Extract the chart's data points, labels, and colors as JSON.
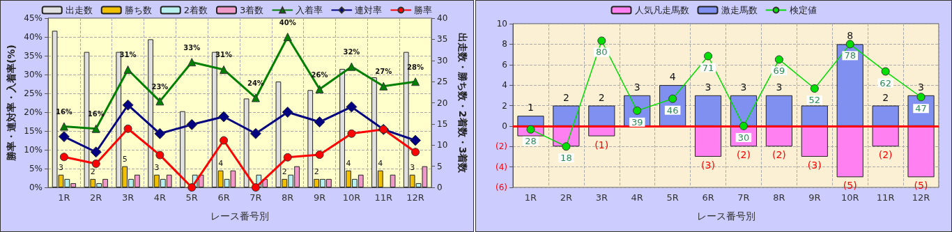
{
  "chart_data": [
    {
      "type": "bar",
      "xlabel": "レース番号別",
      "ylabel": "勝率・連対率・入着率(%)",
      "y2label": "出走数・勝ち数・2着数・3着数",
      "categories": [
        "1R",
        "2R",
        "3R",
        "4R",
        "5R",
        "6R",
        "7R",
        "8R",
        "9R",
        "10R",
        "11R",
        "12R"
      ],
      "series": [
        {
          "name": "出走数",
          "axis": "y2",
          "color": "#e0e0e0",
          "values": [
            37,
            32,
            32,
            35,
            18,
            32,
            21,
            25,
            23,
            28,
            26,
            32
          ]
        },
        {
          "name": "勝ち数",
          "axis": "y2",
          "color": "#f0c000",
          "values": [
            3,
            2,
            5,
            3,
            0,
            4,
            0,
            2,
            2,
            4,
            4,
            3
          ],
          "value_labels": [
            "3",
            "2",
            "5",
            "3",
            null,
            "4",
            null,
            "2",
            "2",
            "4",
            "4",
            "3"
          ]
        },
        {
          "name": "2着数",
          "axis": "y2",
          "color": "#b8f0f0",
          "values": [
            2,
            1,
            2,
            2,
            3,
            2,
            3,
            3,
            2,
            2,
            0,
            1
          ]
        },
        {
          "name": "3着数",
          "axis": "y2",
          "color": "#f098c8",
          "values": [
            1,
            2,
            3,
            3,
            3,
            4,
            2,
            5,
            2,
            3,
            3,
            5
          ]
        },
        {
          "name": "入着率",
          "type": "line",
          "marker": "triangle",
          "color": "#008000",
          "values": [
            16.2,
            15.6,
            31.3,
            22.9,
            33.3,
            31.3,
            23.8,
            40.0,
            26.1,
            32.1,
            26.9,
            28.1
          ],
          "value_labels": [
            "16%",
            "16%",
            "31%",
            "23%",
            "33%",
            "31%",
            "24%",
            "40%",
            "26%",
            "32%",
            "27%",
            "28%"
          ]
        },
        {
          "name": "連対率",
          "type": "line",
          "marker": "diamond",
          "color": "#000080",
          "values": [
            13.5,
            9.4,
            21.9,
            14.3,
            16.7,
            18.8,
            14.3,
            20.0,
            17.4,
            21.4,
            15.4,
            12.5
          ]
        },
        {
          "name": "勝率",
          "type": "line",
          "marker": "circle",
          "color": "#ff0000",
          "values": [
            8.1,
            6.3,
            15.6,
            8.6,
            0,
            12.5,
            0,
            8.0,
            8.7,
            14.3,
            15.4,
            9.4
          ]
        }
      ],
      "ylim": [
        0,
        45
      ],
      "yticks": [
        {
          "value": 0,
          "label": "0%"
        },
        {
          "value": 5,
          "label": "5%"
        },
        {
          "value": 10,
          "label": "10%"
        },
        {
          "value": 15,
          "label": "15%"
        },
        {
          "value": 20,
          "label": "20%"
        },
        {
          "value": 25,
          "label": "25%"
        },
        {
          "value": 30,
          "label": "30%"
        },
        {
          "value": 35,
          "label": "35%"
        },
        {
          "value": 40,
          "label": "40%"
        },
        {
          "value": 45,
          "label": "45%"
        }
      ],
      "y2lim": [
        0,
        40
      ],
      "y2ticks": [
        0,
        5,
        10,
        15,
        20,
        25,
        30,
        35,
        40
      ],
      "grid": true,
      "legend": "top"
    },
    {
      "type": "bar",
      "xlabel": "レース番号別",
      "stacked": true,
      "categories": [
        "1R",
        "2R",
        "3R",
        "4R",
        "5R",
        "6R",
        "7R",
        "8R",
        "9R",
        "10R",
        "11R",
        "12R"
      ],
      "series": [
        {
          "name": "人気凡走馬数",
          "color": "#ff80f0",
          "values": [
            -1,
            -2,
            -1,
            0,
            0,
            -3,
            -2,
            -2,
            -3,
            -5,
            -2,
            -5
          ],
          "value_labels": [
            null,
            null,
            "(1)",
            null,
            null,
            "(3)",
            "(2)",
            "(2)",
            "(3)",
            "(5)",
            "(2)",
            "(5)"
          ]
        },
        {
          "name": "激走馬数",
          "color": "#8090f0",
          "values": [
            1,
            2,
            2,
            3,
            4,
            3,
            3,
            3,
            2,
            8,
            2,
            3
          ],
          "value_labels": [
            "1",
            "2",
            "2",
            "3",
            "4",
            "3",
            "3",
            "3",
            null,
            "8",
            "2",
            "3"
          ]
        },
        {
          "name": "検定値",
          "type": "line",
          "axis": "y2",
          "marker": "circle",
          "color": "#00dd00",
          "values": [
            28,
            18,
            80,
            39,
            46,
            71,
            30,
            69,
            52,
            78,
            62,
            47
          ],
          "value_labels": [
            "28",
            "18",
            "80",
            "39",
            "46",
            "71",
            "30",
            "69",
            "52",
            "78",
            "62",
            "47"
          ]
        }
      ],
      "ylim": [
        -6,
        10
      ],
      "yticks": [
        {
          "value": -6,
          "label": "(6)"
        },
        {
          "value": -4,
          "label": "(4)"
        },
        {
          "value": -2,
          "label": "(2)"
        },
        0,
        2,
        4,
        6,
        8,
        10
      ],
      "y2lim": [
        -6,
        90
      ],
      "ref_lines": [
        {
          "axis": "y",
          "value": 0,
          "color": "#ff0000"
        }
      ],
      "grid": true,
      "legend": "top"
    }
  ]
}
